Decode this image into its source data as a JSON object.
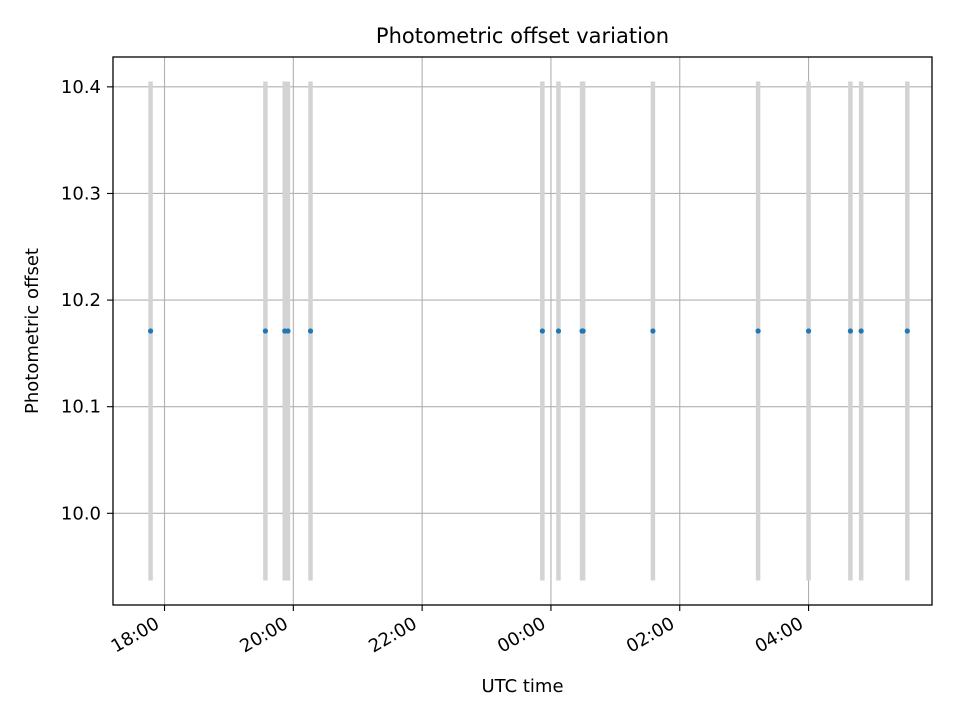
{
  "chart_data": {
    "type": "scatter",
    "title": "Photometric offset variation",
    "xlabel": "UTC time",
    "ylabel": "Photometric offset",
    "x_axis_type": "time",
    "date_reference": "2000-01-01",
    "xlim": [
      "2000-01-01T17:12:00",
      "2000-01-02T05:55:00"
    ],
    "ylim": [
      9.914,
      10.428
    ],
    "x_ticks": [
      {
        "value": "2000-01-01T18:00:00",
        "label": "18:00"
      },
      {
        "value": "2000-01-01T20:00:00",
        "label": "20:00"
      },
      {
        "value": "2000-01-01T22:00:00",
        "label": "22:00"
      },
      {
        "value": "2000-01-02T00:00:00",
        "label": "00:00"
      },
      {
        "value": "2000-01-02T02:00:00",
        "label": "02:00"
      },
      {
        "value": "2000-01-02T04:00:00",
        "label": "04:00"
      }
    ],
    "y_ticks": [
      {
        "value": 10.0,
        "label": "10.0"
      },
      {
        "value": 10.1,
        "label": "10.1"
      },
      {
        "value": 10.2,
        "label": "10.2"
      },
      {
        "value": 10.3,
        "label": "10.3"
      },
      {
        "value": 10.4,
        "label": "10.4"
      }
    ],
    "grid": true,
    "x_tick_rotation": 30,
    "series": [
      {
        "color": "#1f77b4",
        "error_color": "#d3d3d3",
        "points": [
          {
            "x": "2000-01-01T17:47:00",
            "y": 10.171,
            "yerr": 0.234
          },
          {
            "x": "2000-01-01T19:34:00",
            "y": 10.171,
            "yerr": 0.234
          },
          {
            "x": "2000-01-01T19:52:00",
            "y": 10.171,
            "yerr": 0.234
          },
          {
            "x": "2000-01-01T19:55:00",
            "y": 10.171,
            "yerr": 0.234
          },
          {
            "x": "2000-01-01T20:16:00",
            "y": 10.171,
            "yerr": 0.234
          },
          {
            "x": "2000-01-01T23:52:00",
            "y": 10.171,
            "yerr": 0.234
          },
          {
            "x": "2000-01-02T00:07:00",
            "y": 10.171,
            "yerr": 0.234
          },
          {
            "x": "2000-01-02T00:29:00",
            "y": 10.171,
            "yerr": 0.234
          },
          {
            "x": "2000-01-02T00:30:00",
            "y": 10.171,
            "yerr": 0.234
          },
          {
            "x": "2000-01-02T01:35:00",
            "y": 10.171,
            "yerr": 0.234
          },
          {
            "x": "2000-01-02T03:13:00",
            "y": 10.171,
            "yerr": 0.234
          },
          {
            "x": "2000-01-02T04:00:00",
            "y": 10.171,
            "yerr": 0.234
          },
          {
            "x": "2000-01-02T04:39:00",
            "y": 10.171,
            "yerr": 0.234
          },
          {
            "x": "2000-01-02T04:49:00",
            "y": 10.171,
            "yerr": 0.234
          },
          {
            "x": "2000-01-02T05:32:00",
            "y": 10.171,
            "yerr": 0.234
          }
        ]
      }
    ]
  }
}
